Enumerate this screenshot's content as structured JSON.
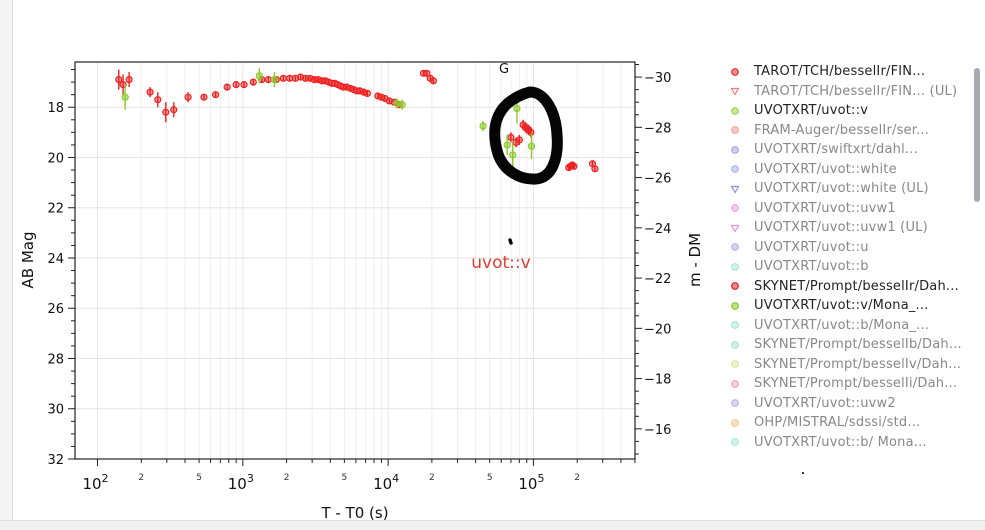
{
  "chart_data": {
    "type": "scatter",
    "xscale": "log",
    "xlabel": "T - T0 (s)",
    "ylabel": "AB Mag",
    "y2label": "m - DM",
    "xlim": [
      70,
      500000
    ],
    "ylim": [
      32,
      16.2
    ],
    "y2lim": [
      -14.8,
      -30.6
    ],
    "x_major_ticks": [
      {
        "value": 100,
        "base": "10",
        "exp": "2"
      },
      {
        "value": 1000,
        "base": "10",
        "exp": "3"
      },
      {
        "value": 10000,
        "base": "10",
        "exp": "4"
      },
      {
        "value": 100000,
        "base": "10",
        "exp": "5"
      }
    ],
    "x_minor_labels": [
      {
        "value": 200,
        "label": "2"
      },
      {
        "value": 500,
        "label": "5"
      },
      {
        "value": 2000,
        "label": "2"
      },
      {
        "value": 5000,
        "label": "5"
      },
      {
        "value": 20000,
        "label": "2"
      },
      {
        "value": 50000,
        "label": "5"
      },
      {
        "value": 200000,
        "label": "2"
      }
    ],
    "y_ticks": [
      18,
      20,
      22,
      24,
      26,
      28,
      30,
      32
    ],
    "y2_ticks": [
      -30,
      -28,
      -26,
      -24,
      -22,
      -20,
      -18,
      -16
    ],
    "series": [
      {
        "name": "TAROT/TCH/besselIr/FIN...",
        "color": "#ee2222",
        "points": [
          [
            140,
            16.9,
            0.4
          ],
          [
            150,
            17.1,
            0.4
          ],
          [
            165,
            16.9,
            0.3
          ],
          [
            230,
            17.4,
            0.2
          ],
          [
            260,
            17.7,
            0.3
          ],
          [
            295,
            18.2,
            0.4
          ],
          [
            335,
            18.1,
            0.3
          ],
          [
            420,
            17.6,
            0.2
          ],
          [
            540,
            17.6,
            0.1
          ],
          [
            650,
            17.5,
            0.1
          ],
          [
            780,
            17.2,
            0.1
          ],
          [
            900,
            17.1,
            0.1
          ],
          [
            1020,
            17.1,
            0.1
          ],
          [
            1180,
            17.0,
            0.1
          ],
          [
            1350,
            16.9,
            0.1
          ],
          [
            1500,
            16.9,
            0.1
          ],
          [
            1700,
            16.9,
            0.1
          ],
          [
            1900,
            16.85,
            0.1
          ],
          [
            2100,
            16.85,
            0.1
          ],
          [
            2300,
            16.85,
            0.1
          ],
          [
            2500,
            16.8,
            0.1
          ],
          [
            2700,
            16.85,
            0.1
          ],
          [
            2900,
            16.85,
            0.1
          ],
          [
            3100,
            16.9,
            0.1
          ],
          [
            3300,
            16.9,
            0.1
          ],
          [
            3500,
            16.95,
            0.1
          ],
          [
            3700,
            16.95,
            0.1
          ],
          [
            3900,
            17.0,
            0.1
          ],
          [
            4100,
            17.05,
            0.1
          ],
          [
            4300,
            17.05,
            0.1
          ],
          [
            4500,
            17.1,
            0.1
          ],
          [
            4700,
            17.15,
            0.1
          ],
          [
            4900,
            17.2,
            0.1
          ],
          [
            5200,
            17.2,
            0.1
          ],
          [
            5500,
            17.25,
            0.1
          ],
          [
            5800,
            17.3,
            0.1
          ],
          [
            6100,
            17.35,
            0.1
          ],
          [
            6400,
            17.35,
            0.1
          ],
          [
            6800,
            17.4,
            0.1
          ],
          [
            7200,
            17.45,
            0.1
          ],
          [
            8500,
            17.55,
            0.1
          ],
          [
            9000,
            17.6,
            0.1
          ],
          [
            9500,
            17.65,
            0.1
          ],
          [
            10200,
            17.75,
            0.1
          ],
          [
            11000,
            17.8,
            0.1
          ],
          [
            12000,
            17.9,
            0.1
          ],
          [
            17500,
            16.65,
            0.1
          ],
          [
            18500,
            16.65,
            0.1
          ],
          [
            19500,
            16.85,
            0.1
          ],
          [
            20500,
            16.95,
            0.1
          ],
          [
            70000,
            19.2,
            0.2
          ],
          [
            76000,
            19.4,
            0.2
          ],
          [
            80000,
            19.3,
            0.2
          ],
          [
            85000,
            18.7,
            0.2
          ],
          [
            88000,
            18.8,
            0.2
          ],
          [
            90000,
            18.85,
            0.2
          ],
          [
            93000,
            18.9,
            0.2
          ],
          [
            96000,
            19.0,
            0.2
          ],
          [
            175000,
            20.4,
            0.1
          ],
          [
            180000,
            20.35,
            0.1
          ],
          [
            185000,
            20.3,
            0.1
          ],
          [
            190000,
            20.35,
            0.1
          ],
          [
            255000,
            20.25,
            0.1
          ],
          [
            265000,
            20.45,
            0.1
          ]
        ]
      },
      {
        "name": "UVOTXRT/uvot::v",
        "color": "#8ac926",
        "points": [
          [
            155,
            17.6,
            0.5
          ],
          [
            1300,
            16.75,
            0.3
          ],
          [
            1650,
            16.9,
            0.3
          ],
          [
            11500,
            17.85,
            0.2
          ],
          [
            12500,
            17.9,
            0.2
          ],
          [
            45000,
            18.75,
            0.2
          ],
          [
            66000,
            19.5,
            0.4
          ],
          [
            72000,
            19.9,
            0.5
          ],
          [
            77000,
            18.05,
            0.6
          ],
          [
            97000,
            19.55,
            0.5
          ]
        ]
      }
    ]
  },
  "annotations": {
    "g_label": "G",
    "uvot_label": "uvot::v",
    "uvot_label_color": "#e63a2e"
  },
  "legend": {
    "items": [
      {
        "label": "TAROT/TCH/besselIr/FIN...",
        "marker": "circle",
        "color": "#e83030",
        "faded": false
      },
      {
        "label": "TAROT/TCH/besselIr/FIN... (UL)",
        "marker": "triangle-down",
        "color": "#f08080",
        "faded": true
      },
      {
        "label": "UVOTXRT/uvot::v",
        "marker": "circle",
        "color": "#9fd24a",
        "faded": false
      },
      {
        "label": "FRAM-Auger/besselIr/ser...",
        "marker": "circle",
        "color": "#f4a0a0",
        "faded": true
      },
      {
        "label": "UVOTXRT/swiftxrt/dahl...",
        "marker": "circle",
        "color": "#b0a0e8",
        "faded": true
      },
      {
        "label": "UVOTXRT/uvot::white",
        "marker": "circle",
        "color": "#b0b0f0",
        "faded": true
      },
      {
        "label": "UVOTXRT/uvot::white (UL)",
        "marker": "triangle-down",
        "color": "#9090e0",
        "faded": true
      },
      {
        "label": "UVOTXRT/uvot::uvw1",
        "marker": "circle",
        "color": "#e8a8e8",
        "faded": true
      },
      {
        "label": "UVOTXRT/uvot::uvw1 (UL)",
        "marker": "triangle-down",
        "color": "#e090e0",
        "faded": true
      },
      {
        "label": "UVOTXRT/uvot::u",
        "marker": "circle",
        "color": "#b8b0f0",
        "faded": true
      },
      {
        "label": "UVOTXRT/uvot::b",
        "marker": "circle",
        "color": "#a8e8d8",
        "faded": true
      },
      {
        "label": "SKYNET/Prompt/besselIr/Dah...",
        "marker": "circle",
        "color": "#e52222",
        "faded": false
      },
      {
        "label": "UVOTXRT/uvot::v/Mona_...",
        "marker": "circle",
        "color": "#8ac926",
        "faded": false
      },
      {
        "label": "UVOTXRT/uvot::b/Mona_...",
        "marker": "circle",
        "color": "#a8e8d8",
        "faded": true
      },
      {
        "label": "SKYNET/Prompt/besselIb/Dah...",
        "marker": "circle",
        "color": "#a8e8d0",
        "faded": true
      },
      {
        "label": "SKYNET/Prompt/besselIv/Dah...",
        "marker": "circle",
        "color": "#e0e8a0",
        "faded": true
      },
      {
        "label": "SKYNET/Prompt/besselIi/Dah...",
        "marker": "circle",
        "color": "#f0a8b8",
        "faded": true
      },
      {
        "label": "UVOTXRT/uvot::uvw2",
        "marker": "circle",
        "color": "#c0b0f0",
        "faded": true
      },
      {
        "label": "OHP/MISTRAL/sdssi/std...",
        "marker": "circle",
        "color": "#f8c890",
        "faded": true
      },
      {
        "label": "UVOTXRT/uvot::b/ Mona...",
        "marker": "circle",
        "color": "#a8e8d8",
        "faded": true
      }
    ]
  }
}
